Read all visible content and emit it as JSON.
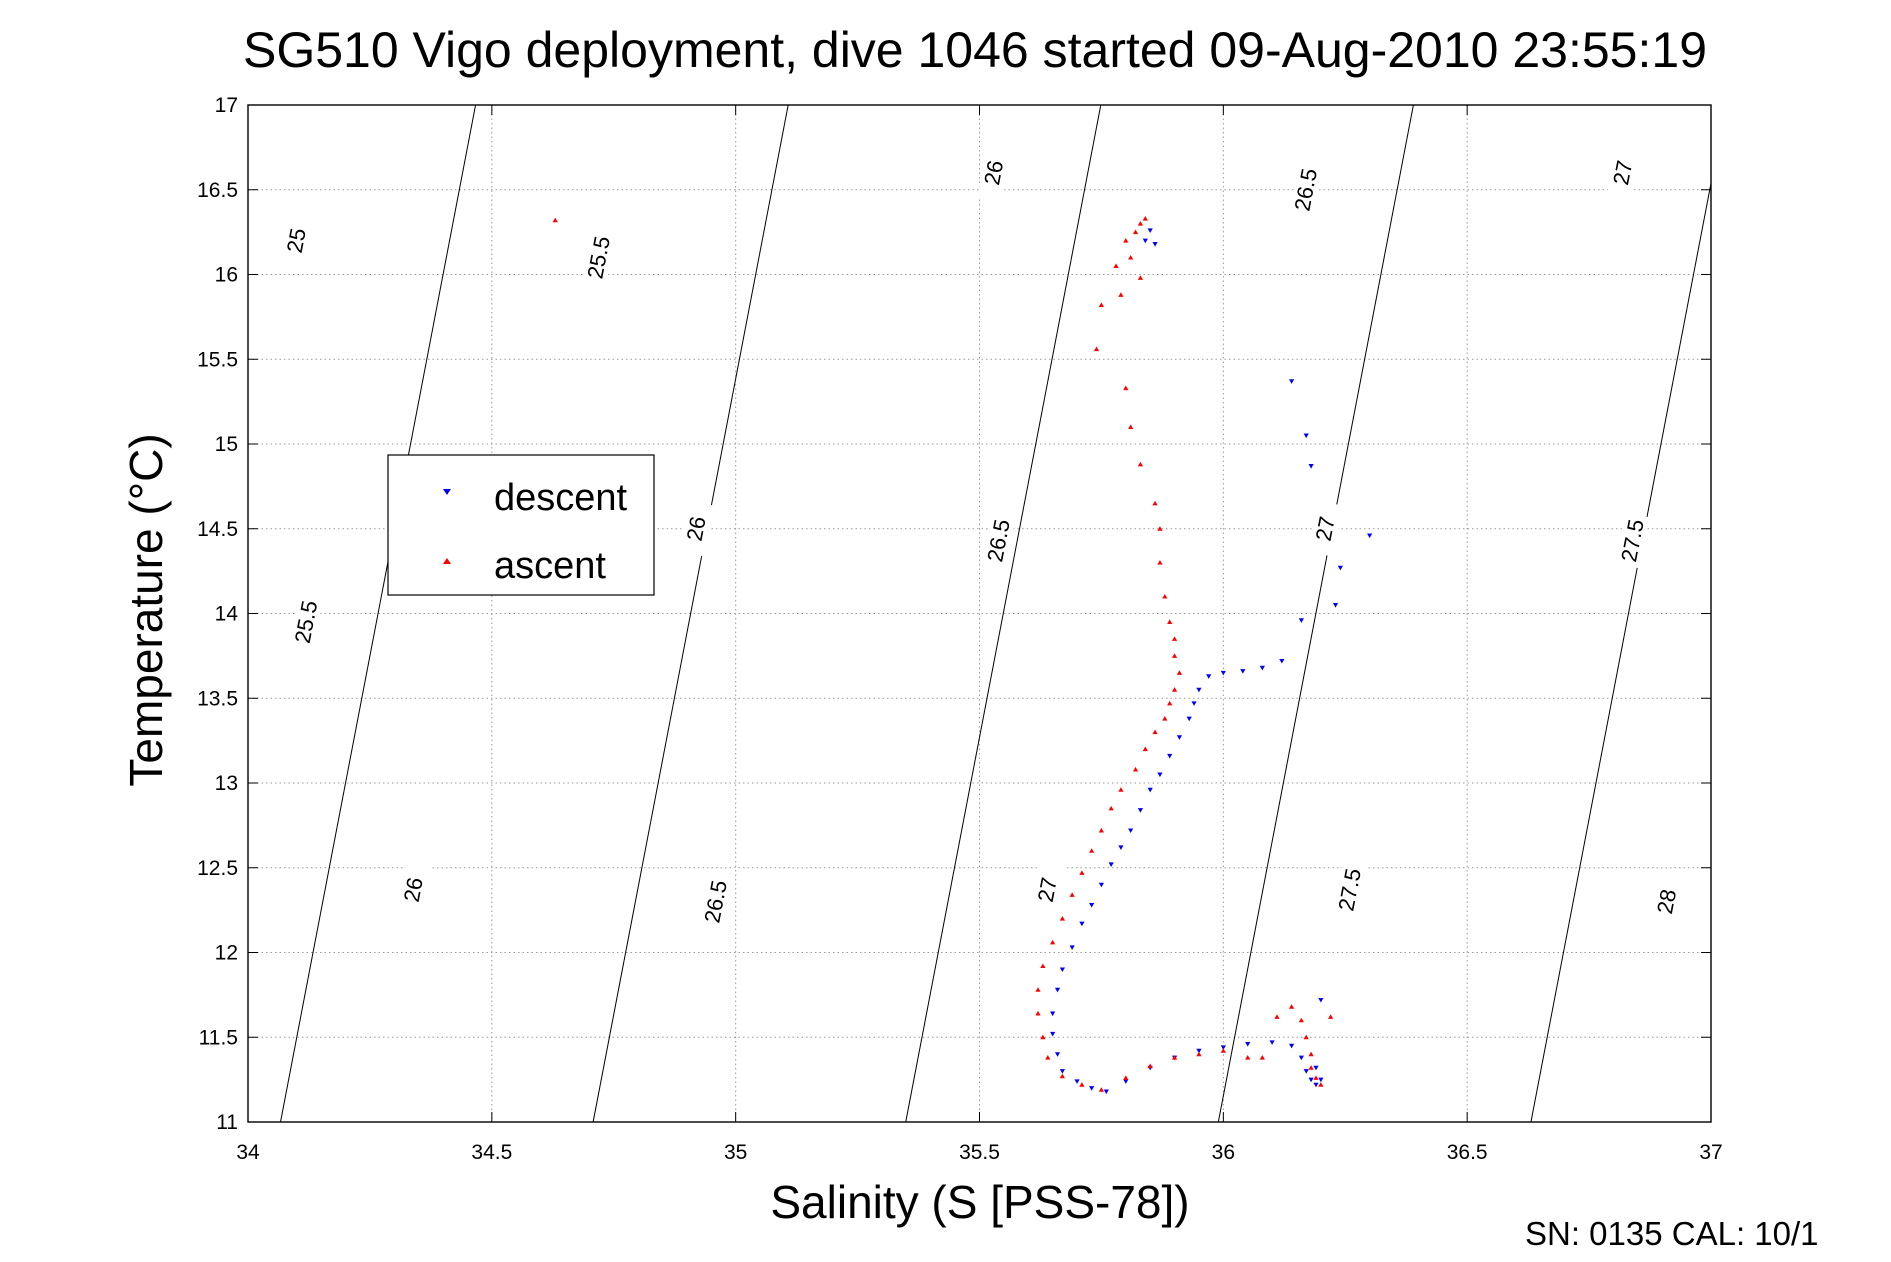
{
  "chart_data": {
    "type": "scatter",
    "title": "SG510 Vigo deployment, dive 1046 started 09-Aug-2010 23:55:19",
    "xlabel": "Salinity (S [PSS-78])",
    "ylabel": "Temperature (°C)",
    "xlim": [
      34,
      37
    ],
    "ylim": [
      11,
      17
    ],
    "xticks": [
      "34",
      "34.5",
      "35",
      "35.5",
      "36",
      "36.5",
      "37"
    ],
    "yticks": [
      "11",
      "11.5",
      "12",
      "12.5",
      "13",
      "13.5",
      "14",
      "14.5",
      "15",
      "15.5",
      "16",
      "16.5",
      "17"
    ],
    "grid": true,
    "legend_position": "upper-left",
    "series": [
      {
        "name": "descent",
        "marker": "triangle-down",
        "color": "#0000ff",
        "points": [
          [
            35.85,
            16.26
          ],
          [
            35.84,
            16.2
          ],
          [
            35.86,
            16.18
          ],
          [
            36.14,
            15.37
          ],
          [
            36.17,
            15.05
          ],
          [
            36.18,
            14.87
          ],
          [
            36.3,
            14.46
          ],
          [
            36.24,
            14.27
          ],
          [
            36.23,
            14.05
          ],
          [
            36.16,
            13.96
          ],
          [
            36.12,
            13.72
          ],
          [
            36.08,
            13.68
          ],
          [
            36.04,
            13.66
          ],
          [
            36.0,
            13.65
          ],
          [
            35.97,
            13.63
          ],
          [
            35.95,
            13.55
          ],
          [
            35.94,
            13.47
          ],
          [
            35.93,
            13.38
          ],
          [
            35.91,
            13.27
          ],
          [
            35.89,
            13.16
          ],
          [
            35.87,
            13.05
          ],
          [
            35.85,
            12.96
          ],
          [
            35.83,
            12.84
          ],
          [
            35.81,
            12.72
          ],
          [
            35.79,
            12.62
          ],
          [
            35.77,
            12.52
          ],
          [
            35.75,
            12.4
          ],
          [
            35.73,
            12.28
          ],
          [
            35.71,
            12.17
          ],
          [
            35.69,
            12.03
          ],
          [
            35.67,
            11.9
          ],
          [
            35.66,
            11.78
          ],
          [
            35.65,
            11.64
          ],
          [
            35.65,
            11.52
          ],
          [
            35.66,
            11.4
          ],
          [
            35.67,
            11.3
          ],
          [
            35.7,
            11.24
          ],
          [
            35.73,
            11.2
          ],
          [
            35.76,
            11.18
          ],
          [
            35.8,
            11.24
          ],
          [
            35.85,
            11.32
          ],
          [
            35.9,
            11.38
          ],
          [
            35.95,
            11.42
          ],
          [
            36.0,
            11.44
          ],
          [
            36.05,
            11.46
          ],
          [
            36.1,
            11.47
          ],
          [
            36.14,
            11.45
          ],
          [
            36.16,
            11.38
          ],
          [
            36.17,
            11.3
          ],
          [
            36.18,
            11.25
          ],
          [
            36.19,
            11.22
          ],
          [
            36.2,
            11.25
          ],
          [
            36.19,
            11.32
          ],
          [
            36.2,
            11.72
          ]
        ]
      },
      {
        "name": "ascent",
        "marker": "triangle-up",
        "color": "#ff0000",
        "points": [
          [
            34.63,
            16.32
          ],
          [
            35.84,
            16.33
          ],
          [
            35.83,
            16.3
          ],
          [
            35.82,
            16.25
          ],
          [
            35.8,
            16.2
          ],
          [
            35.81,
            16.1
          ],
          [
            35.78,
            16.05
          ],
          [
            35.83,
            15.98
          ],
          [
            35.79,
            15.88
          ],
          [
            35.75,
            15.82
          ],
          [
            35.74,
            15.56
          ],
          [
            35.8,
            15.33
          ],
          [
            35.81,
            15.1
          ],
          [
            35.83,
            14.88
          ],
          [
            35.86,
            14.65
          ],
          [
            35.87,
            14.5
          ],
          [
            35.87,
            14.3
          ],
          [
            35.88,
            14.1
          ],
          [
            35.89,
            13.95
          ],
          [
            35.9,
            13.85
          ],
          [
            35.9,
            13.75
          ],
          [
            35.91,
            13.65
          ],
          [
            35.9,
            13.55
          ],
          [
            35.89,
            13.47
          ],
          [
            35.88,
            13.38
          ],
          [
            35.86,
            13.3
          ],
          [
            35.84,
            13.2
          ],
          [
            35.82,
            13.08
          ],
          [
            35.79,
            12.96
          ],
          [
            35.77,
            12.85
          ],
          [
            35.75,
            12.72
          ],
          [
            35.73,
            12.6
          ],
          [
            35.71,
            12.47
          ],
          [
            35.69,
            12.34
          ],
          [
            35.67,
            12.2
          ],
          [
            35.65,
            12.06
          ],
          [
            35.63,
            11.92
          ],
          [
            35.62,
            11.78
          ],
          [
            35.62,
            11.64
          ],
          [
            35.63,
            11.5
          ],
          [
            35.64,
            11.38
          ],
          [
            35.67,
            11.27
          ],
          [
            35.71,
            11.22
          ],
          [
            35.75,
            11.19
          ],
          [
            35.8,
            11.26
          ],
          [
            35.85,
            11.33
          ],
          [
            35.9,
            11.38
          ],
          [
            35.95,
            11.4
          ],
          [
            36.0,
            11.42
          ],
          [
            36.05,
            11.38
          ],
          [
            36.08,
            11.38
          ],
          [
            36.11,
            11.62
          ],
          [
            36.14,
            11.68
          ],
          [
            36.16,
            11.6
          ],
          [
            36.17,
            11.5
          ],
          [
            36.18,
            11.4
          ],
          [
            36.18,
            11.32
          ],
          [
            36.19,
            11.26
          ],
          [
            36.2,
            11.22
          ],
          [
            36.22,
            11.62
          ]
        ]
      }
    ],
    "contour_levels": [
      25,
      25.5,
      26,
      26.5,
      27,
      27.5,
      28
    ],
    "contour_labels": [
      {
        "text": "25",
        "s": 34.1,
        "t": 16.2
      },
      {
        "text": "25.5",
        "s": 34.72,
        "t": 16.1
      },
      {
        "text": "26",
        "s": 35.53,
        "t": 16.6
      },
      {
        "text": "26.5",
        "s": 36.17,
        "t": 16.5
      },
      {
        "text": "27",
        "s": 36.82,
        "t": 16.6
      },
      {
        "text": "26",
        "s": 34.92,
        "t": 14.5
      },
      {
        "text": "26.5",
        "s": 35.54,
        "t": 14.43
      },
      {
        "text": "27",
        "s": 36.21,
        "t": 14.5
      },
      {
        "text": "27.5",
        "s": 36.84,
        "t": 14.43
      },
      {
        "text": "25.5",
        "s": 34.12,
        "t": 13.95
      },
      {
        "text": "26",
        "s": 34.34,
        "t": 12.37
      },
      {
        "text": "26.5",
        "s": 34.96,
        "t": 12.3
      },
      {
        "text": "27",
        "s": 35.64,
        "t": 12.37
      },
      {
        "text": "27.5",
        "s": 36.26,
        "t": 12.37
      },
      {
        "text": "28",
        "s": 36.91,
        "t": 12.3
      }
    ]
  },
  "legend": {
    "descent": "descent",
    "ascent": "ascent"
  },
  "footer": "SN: 0135  CAL: 10/1"
}
